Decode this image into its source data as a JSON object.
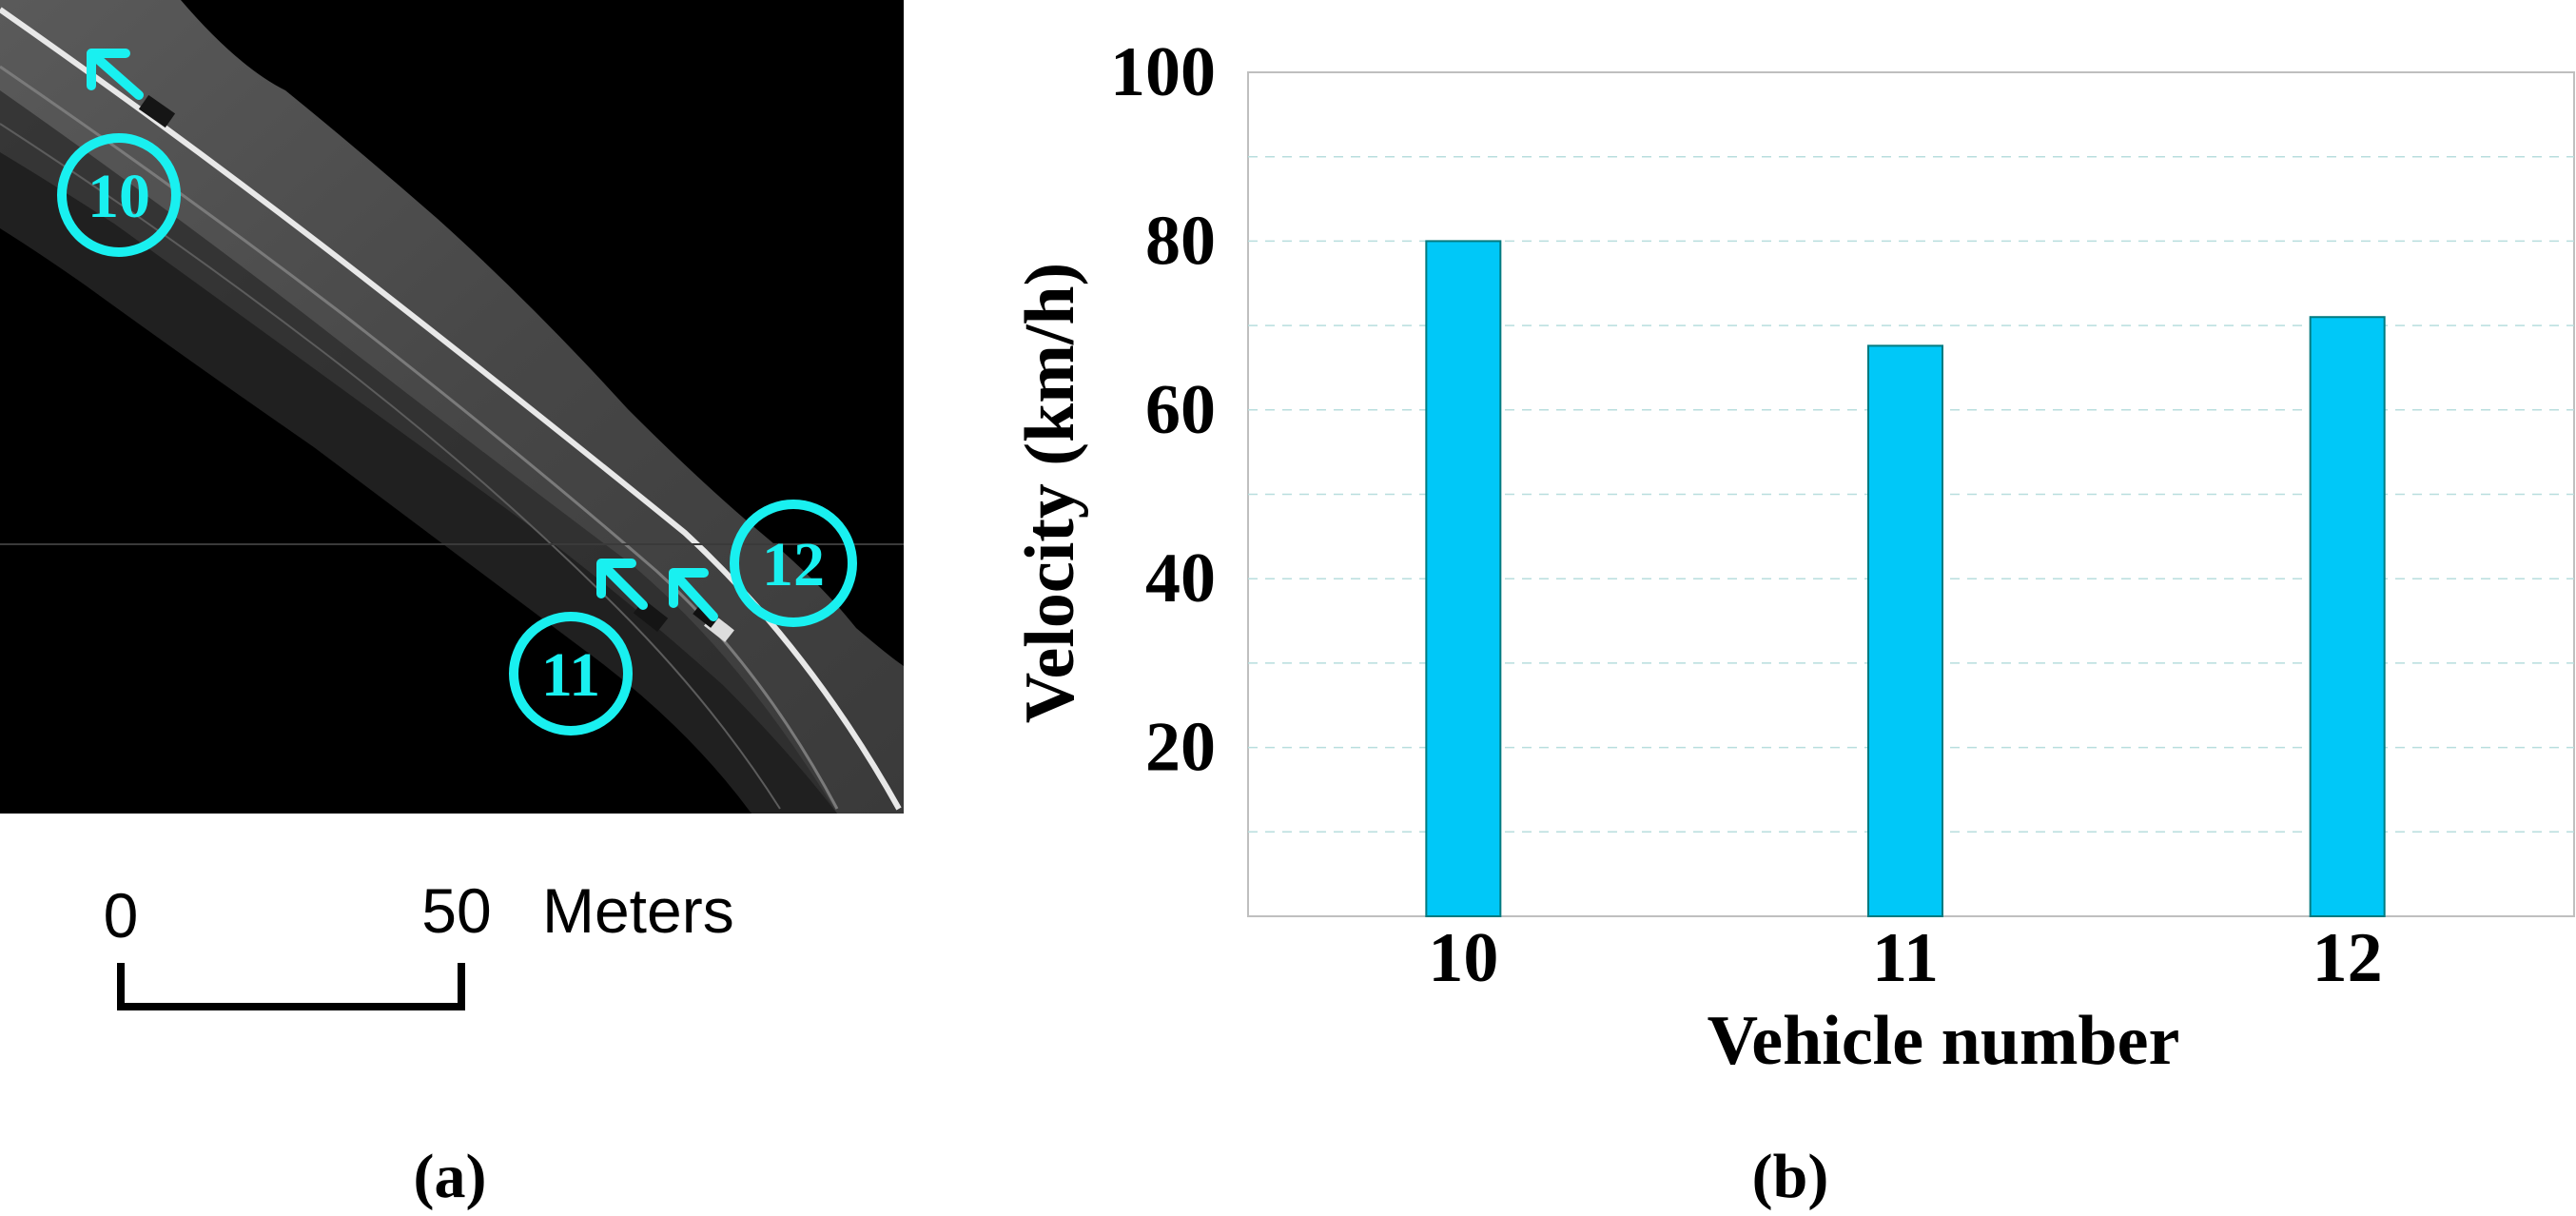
{
  "panel_a": {
    "caption": "(a)",
    "markers": [
      {
        "label": "10"
      },
      {
        "label": "11"
      },
      {
        "label": "12"
      }
    ],
    "scale_bar": {
      "start_label": "0",
      "end_label": "50",
      "unit": "Meters"
    },
    "accent_color": "#19f0f0"
  },
  "panel_b": {
    "caption": "(b)"
  },
  "chart_data": {
    "type": "bar",
    "categories": [
      "10",
      "11",
      "12"
    ],
    "values": [
      80,
      67.6,
      71
    ],
    "xlabel": "Vehicle number",
    "ylabel": "Velocity (km/h)",
    "ylim": [
      0,
      100
    ],
    "yticks": [
      20,
      40,
      60,
      80,
      100
    ],
    "grid": true,
    "bar_color": "#00c8f8",
    "bar_edge_color": "#007a80"
  }
}
